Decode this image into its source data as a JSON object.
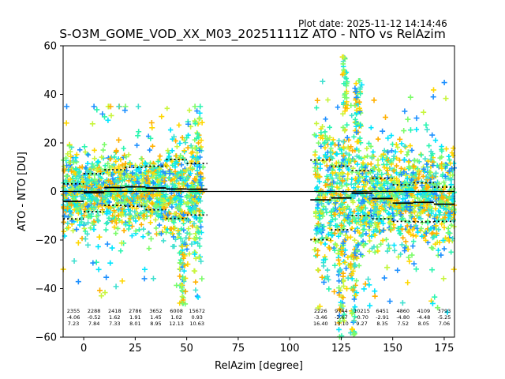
{
  "plot_date": "Plot date: 2025-11-12 14:14:46",
  "chart_data": {
    "type": "scatter",
    "title": "S-O3M_GOME_VOD_XX_M03_20251111Z ATO - NTO vs RelAzim",
    "xlabel": "RelAzim [degree]",
    "ylabel": "ATO - NTO [DU]",
    "xlim": [
      -10,
      180
    ],
    "ylim": [
      -60,
      60
    ],
    "xticks": [
      0,
      25,
      50,
      75,
      100,
      125,
      150,
      175
    ],
    "yticks": [
      -60,
      -40,
      -20,
      0,
      20,
      40,
      60
    ],
    "zero_line": 0,
    "bins": [
      {
        "x_start": -10,
        "x_end": 0,
        "count": "2355",
        "mean": "-4.06",
        "std": "7.23"
      },
      {
        "x_start": 0,
        "x_end": 10,
        "count": "2288",
        "mean": "-0.52",
        "std": "7.84"
      },
      {
        "x_start": 10,
        "x_end": 20,
        "count": "2418",
        "mean": "1.62",
        "std": "7.33"
      },
      {
        "x_start": 20,
        "x_end": 30,
        "count": "2786",
        "mean": "1.91",
        "std": "8.01"
      },
      {
        "x_start": 30,
        "x_end": 40,
        "count": "3652",
        "mean": "1.45",
        "std": "8.95"
      },
      {
        "x_start": 40,
        "x_end": 50,
        "count": "6008",
        "mean": "1.02",
        "std": "12.13"
      },
      {
        "x_start": 50,
        "x_end": 60,
        "count": "15672",
        "mean": "0.93",
        "std": "10.63"
      },
      {
        "x_start": 110,
        "x_end": 120,
        "count": "2226",
        "mean": "-3.46",
        "std": "16.40"
      },
      {
        "x_start": 120,
        "x_end": 130,
        "count": "9744",
        "mean": "-2.67",
        "std": "13.10"
      },
      {
        "x_start": 130,
        "x_end": 140,
        "count": "10215",
        "mean": "-0.70",
        "std": "9.27"
      },
      {
        "x_start": 140,
        "x_end": 150,
        "count": "6451",
        "mean": "-2.91",
        "std": "8.35"
      },
      {
        "x_start": 150,
        "x_end": 160,
        "count": "4860",
        "mean": "-4.80",
        "std": "7.52"
      },
      {
        "x_start": 160,
        "x_end": 170,
        "count": "4109",
        "mean": "-4.48",
        "std": "8.05"
      },
      {
        "x_start": 170,
        "x_end": 180,
        "count": "3793",
        "mean": "-5.25",
        "std": "7.06"
      }
    ],
    "point_regions": [
      {
        "x_range": [
          -10,
          58
        ],
        "y_center": 0,
        "y_spread": 14,
        "extremes": [
          -47,
          35
        ]
      },
      {
        "x_range": [
          112,
          180
        ],
        "y_center": -2,
        "y_spread": 18,
        "extremes": [
          -60,
          57
        ]
      }
    ],
    "marker": "+",
    "colors": [
      "#00e5ff",
      "#1e90ff",
      "#2cf5b0",
      "#7cfc6a",
      "#c8f53c",
      "#ffd700",
      "#ffb000",
      "#40e0d0"
    ]
  }
}
